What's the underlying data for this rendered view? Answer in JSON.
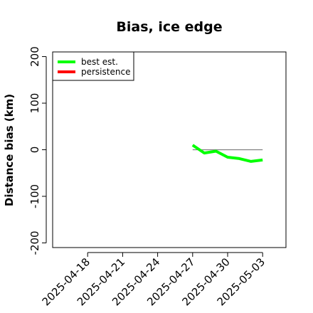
{
  "chart_data": {
    "type": "line",
    "title": "Bias, ice edge",
    "xlabel": "",
    "ylabel": "Distance bias (km)",
    "ylim": [
      -210,
      210
    ],
    "xlim": [
      "2025-04-15",
      "2025-05-05"
    ],
    "y_ticks": [
      -200,
      -100,
      0,
      100,
      200
    ],
    "x_ticks": [
      "2025-04-18",
      "2025-04-21",
      "2025-04-24",
      "2025-04-27",
      "2025-04-30",
      "2025-05-03"
    ],
    "legend": {
      "position": "top-left"
    },
    "grid": false,
    "zero_line": {
      "y": 0,
      "x_from": "2025-04-27",
      "x_to": "2025-05-03",
      "color": "#808080"
    },
    "series": [
      {
        "name": "best est.",
        "color": "#00ff00",
        "x": [
          "2025-04-27",
          "2025-04-28",
          "2025-04-29",
          "2025-04-30",
          "2025-05-01",
          "2025-05-02",
          "2025-05-03"
        ],
        "values": [
          10,
          -7,
          -3,
          -16,
          -19,
          -25,
          -22
        ]
      },
      {
        "name": "persistence",
        "color": "#ff0000",
        "x": [],
        "values": []
      }
    ]
  }
}
